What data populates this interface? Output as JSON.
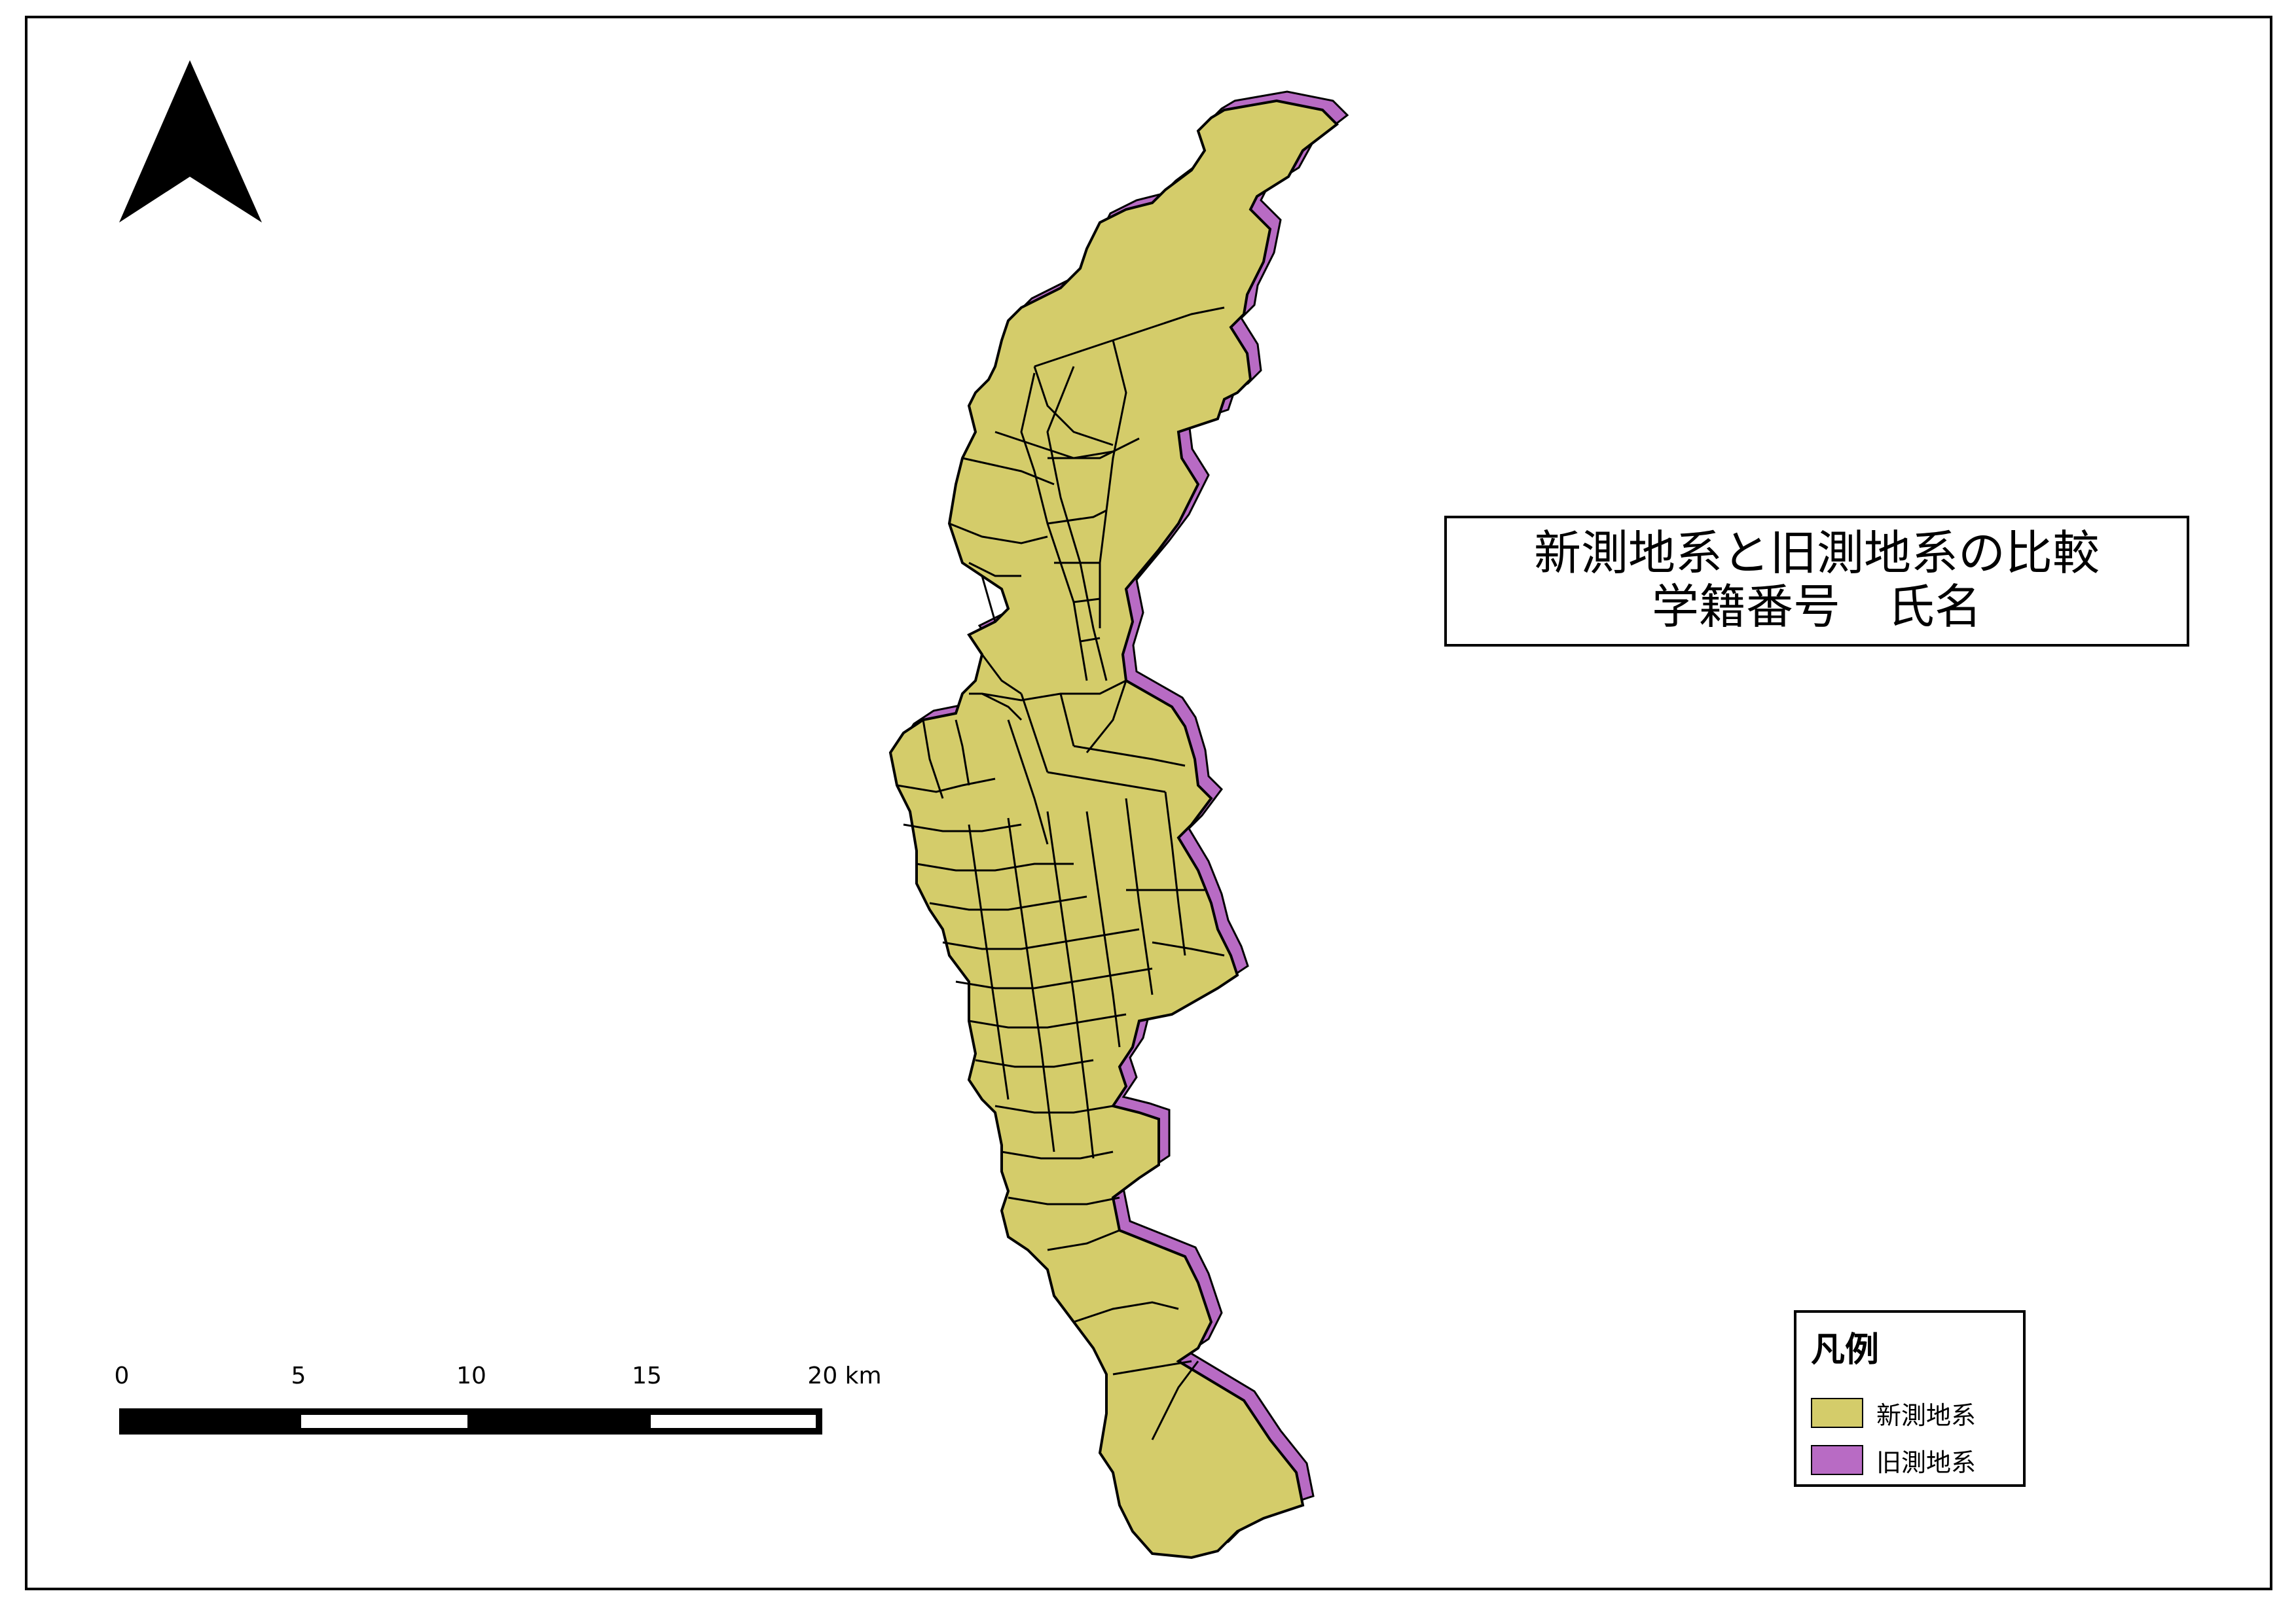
{
  "title": {
    "line1": "新測地系と旧測地系の比較",
    "line2": "学籍番号　氏名"
  },
  "legend": {
    "title": "凡例",
    "items": [
      {
        "label": "新測地系",
        "color": "#d4cc6a"
      },
      {
        "label": "旧測地系",
        "color": "#b86bc4"
      }
    ]
  },
  "scale_bar": {
    "ticks": [
      "0",
      "5",
      "10",
      "15",
      "20 km"
    ]
  },
  "colors": {
    "new_datum": "#d4cc6a",
    "old_datum": "#b86bc4",
    "boundary": "#000000"
  },
  "north_arrow": {
    "icon": "north-arrow-icon"
  }
}
